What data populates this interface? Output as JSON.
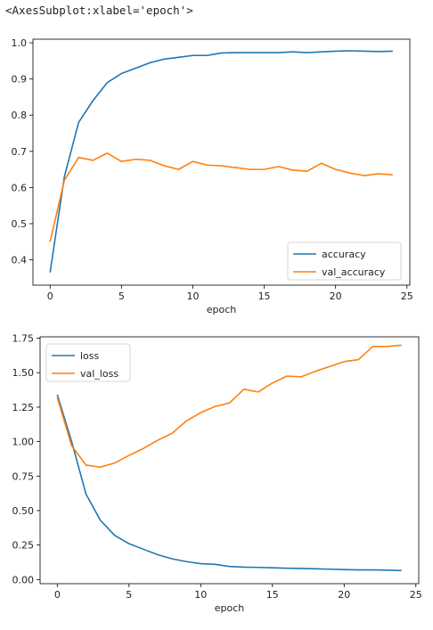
{
  "output_repr": "<AxesSubplot:xlabel='epoch'>",
  "chart_data": [
    {
      "type": "line",
      "xlabel": "epoch",
      "xlim": [
        -1.2,
        25.2
      ],
      "ylim": [
        0.33,
        1.01
      ],
      "xticks": [
        0,
        5,
        10,
        15,
        20,
        25
      ],
      "yticks": [
        0.4,
        0.5,
        0.6,
        0.7,
        0.8,
        0.9,
        1.0
      ],
      "ytick_labels": [
        "0.4",
        "0.5",
        "0.6",
        "0.7",
        "0.8",
        "0.9",
        "1.0"
      ],
      "legend_position": "bottom-right",
      "x": [
        0,
        1,
        2,
        3,
        4,
        5,
        6,
        7,
        8,
        9,
        10,
        11,
        12,
        13,
        14,
        15,
        16,
        17,
        18,
        19,
        20,
        21,
        22,
        23,
        24
      ],
      "series": [
        {
          "name": "accuracy",
          "color": "#1f77b4",
          "values": [
            0.365,
            0.63,
            0.78,
            0.84,
            0.89,
            0.915,
            0.93,
            0.945,
            0.955,
            0.96,
            0.965,
            0.965,
            0.972,
            0.973,
            0.973,
            0.973,
            0.973,
            0.975,
            0.973,
            0.975,
            0.977,
            0.978,
            0.977,
            0.976,
            0.977
          ]
        },
        {
          "name": "val_accuracy",
          "color": "#ff7f0e",
          "values": [
            0.45,
            0.62,
            0.683,
            0.675,
            0.695,
            0.672,
            0.678,
            0.675,
            0.66,
            0.65,
            0.672,
            0.662,
            0.66,
            0.655,
            0.65,
            0.65,
            0.658,
            0.648,
            0.645,
            0.667,
            0.65,
            0.64,
            0.633,
            0.638,
            0.635
          ]
        }
      ]
    },
    {
      "type": "line",
      "xlabel": "epoch",
      "xlim": [
        -1.2,
        25.2
      ],
      "ylim": [
        -0.03,
        1.76
      ],
      "xticks": [
        0,
        5,
        10,
        15,
        20,
        25
      ],
      "yticks": [
        0,
        0.25,
        0.5,
        0.75,
        1.0,
        1.25,
        1.5,
        1.75
      ],
      "ytick_labels": [
        "0.00",
        "0.25",
        "0.50",
        "0.75",
        "1.00",
        "1.25",
        "1.50",
        "1.75"
      ],
      "legend_position": "top-left",
      "x": [
        0,
        1,
        2,
        3,
        4,
        5,
        6,
        7,
        8,
        9,
        10,
        11,
        12,
        13,
        14,
        15,
        16,
        17,
        18,
        19,
        20,
        21,
        22,
        23,
        24
      ],
      "series": [
        {
          "name": "loss",
          "color": "#1f77b4",
          "values": [
            1.34,
            1.0,
            0.62,
            0.43,
            0.32,
            0.26,
            0.22,
            0.18,
            0.15,
            0.13,
            0.115,
            0.11,
            0.095,
            0.09,
            0.088,
            0.085,
            0.082,
            0.08,
            0.078,
            0.075,
            0.072,
            0.07,
            0.07,
            0.068,
            0.065
          ]
        },
        {
          "name": "val_loss",
          "color": "#ff7f0e",
          "values": [
            1.32,
            0.97,
            0.83,
            0.815,
            0.845,
            0.9,
            0.95,
            1.01,
            1.06,
            1.15,
            1.21,
            1.255,
            1.28,
            1.38,
            1.36,
            1.425,
            1.475,
            1.47,
            1.51,
            1.545,
            1.58,
            1.595,
            1.69,
            1.69,
            1.7
          ]
        }
      ]
    }
  ]
}
